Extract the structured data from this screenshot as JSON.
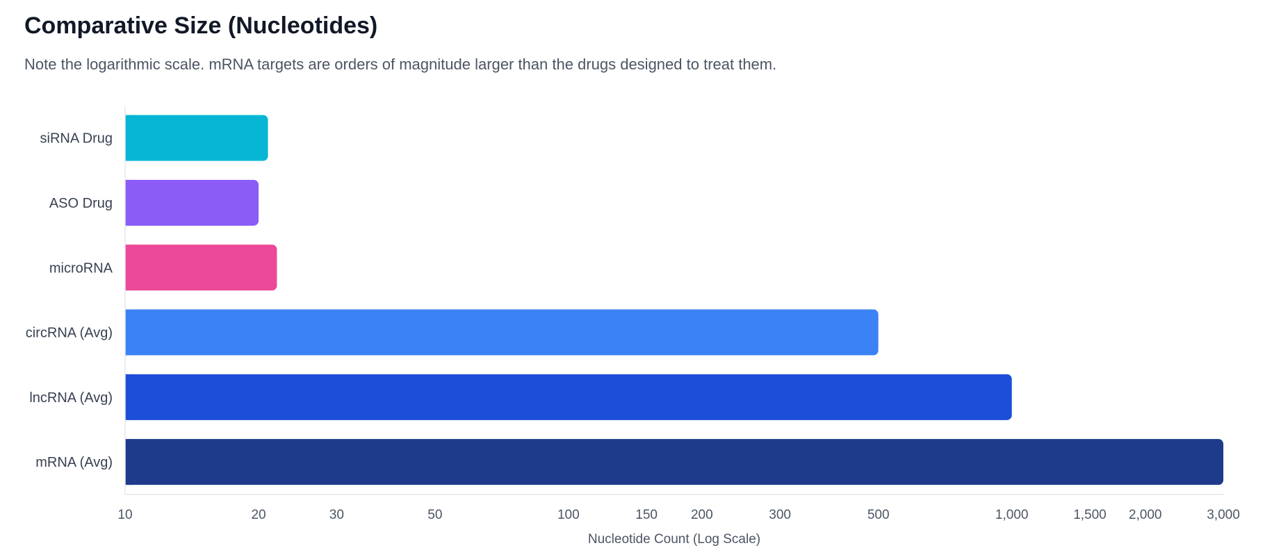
{
  "chart_data": {
    "type": "bar",
    "orientation": "horizontal",
    "title": "Comparative Size (Nucleotides)",
    "subtitle": "Note the logarithmic scale. mRNA targets are orders of magnitude larger than the drugs designed to treat them.",
    "xlabel": "Nucleotide Count (Log Scale)",
    "ylabel": "",
    "x_scale": "log",
    "xlim": [
      10,
      3000
    ],
    "x_ticks": [
      10,
      20,
      30,
      50,
      100,
      150,
      200,
      300,
      500,
      1000,
      1500,
      2000,
      3000
    ],
    "x_tick_labels": [
      "10",
      "20",
      "30",
      "50",
      "100",
      "150",
      "200",
      "300",
      "500",
      "1,000",
      "1,500",
      "2,000",
      "3,000"
    ],
    "grid": false,
    "categories": [
      "siRNA Drug",
      "ASO Drug",
      "microRNA",
      "circRNA (Avg)",
      "lncRNA (Avg)",
      "mRNA (Avg)"
    ],
    "values": [
      21,
      20,
      22,
      500,
      1000,
      3000
    ],
    "colors": [
      "#06b6d4",
      "#8b5cf6",
      "#ec4899",
      "#3b82f6",
      "#1d4ed8",
      "#1e3a8a"
    ]
  }
}
